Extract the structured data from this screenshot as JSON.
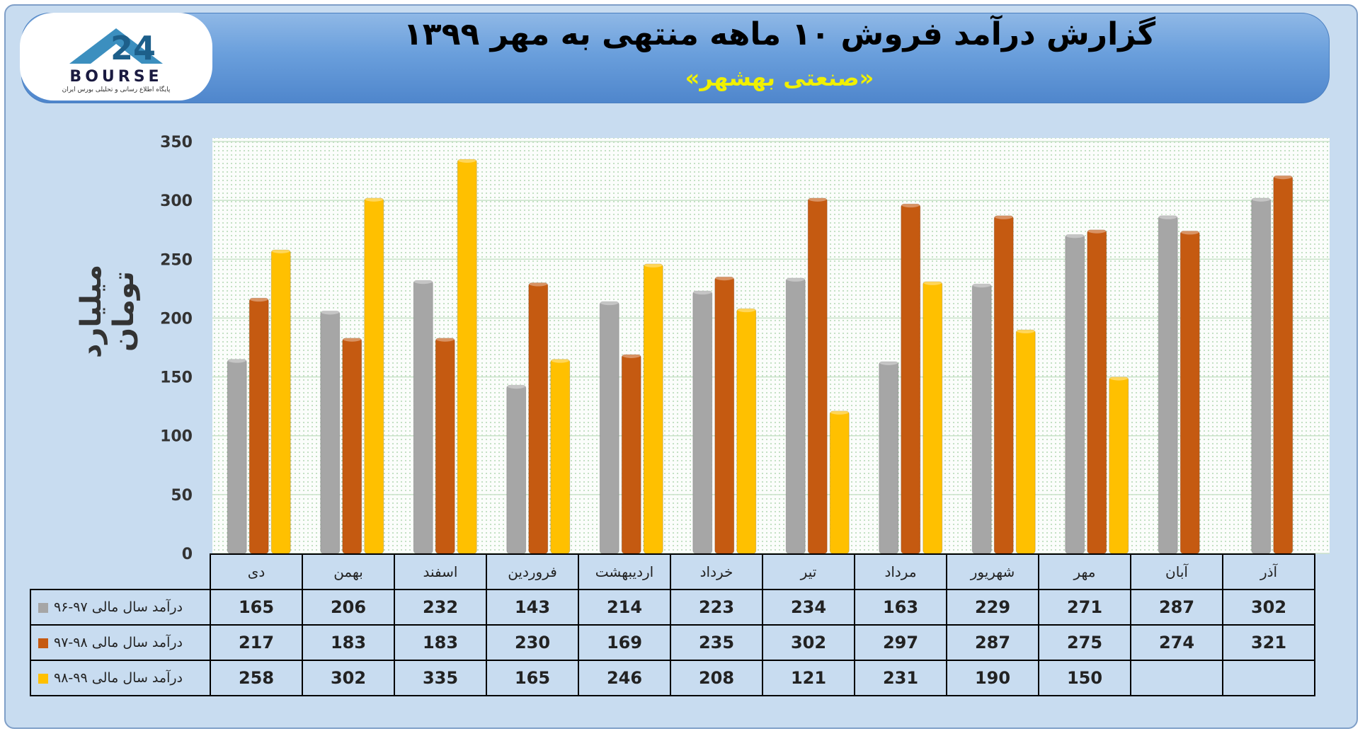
{
  "header": {
    "title": "گزارش درآمد فروش ۱۰ ماهه منتهی به مهر ۱۳۹۹",
    "subtitle": "«صنعتی بهشهر»",
    "logo_text": "BOURSE",
    "logo_mark": "24",
    "logo_tagline": "پایگاه اطلاع رسانی و تحلیلی بورس ایران"
  },
  "colors": {
    "series_96_97": "#a6a6a6",
    "series_97_98": "#c55a11",
    "series_98_99": "#ffc000",
    "plot_bg": "#fbfdfb",
    "grid": "#c9e2c9"
  },
  "chart_data": {
    "type": "bar",
    "title": "گزارش درآمد فروش ۱۰ ماهه منتهی به مهر ۱۳۹۹",
    "subtitle": "«صنعتی بهشهر»",
    "ylabel": "میلیارد تومان",
    "xlabel": "",
    "ylim": [
      0,
      350
    ],
    "yticks": [
      0,
      50,
      100,
      150,
      200,
      250,
      300,
      350
    ],
    "grid": true,
    "legend_placement": "left of data table",
    "categories": [
      "دی",
      "بهمن",
      "اسفند",
      "فروردین",
      "اردیبهشت",
      "خرداد",
      "تیر",
      "مرداد",
      "شهریور",
      "مهر",
      "آبان",
      "آذر"
    ],
    "series": [
      {
        "name": "درآمد سال مالی ۹۷-۹۶",
        "values": [
          165,
          206,
          232,
          143,
          214,
          223,
          234,
          163,
          229,
          271,
          287,
          302
        ]
      },
      {
        "name": "درآمد سال مالی ۹۸-۹۷",
        "values": [
          217,
          183,
          183,
          230,
          169,
          235,
          302,
          297,
          287,
          275,
          274,
          321
        ]
      },
      {
        "name": "درآمد سال مالی ۹۹-۹۸",
        "values": [
          258,
          302,
          335,
          165,
          246,
          208,
          121,
          231,
          190,
          150,
          null,
          null
        ]
      }
    ]
  }
}
